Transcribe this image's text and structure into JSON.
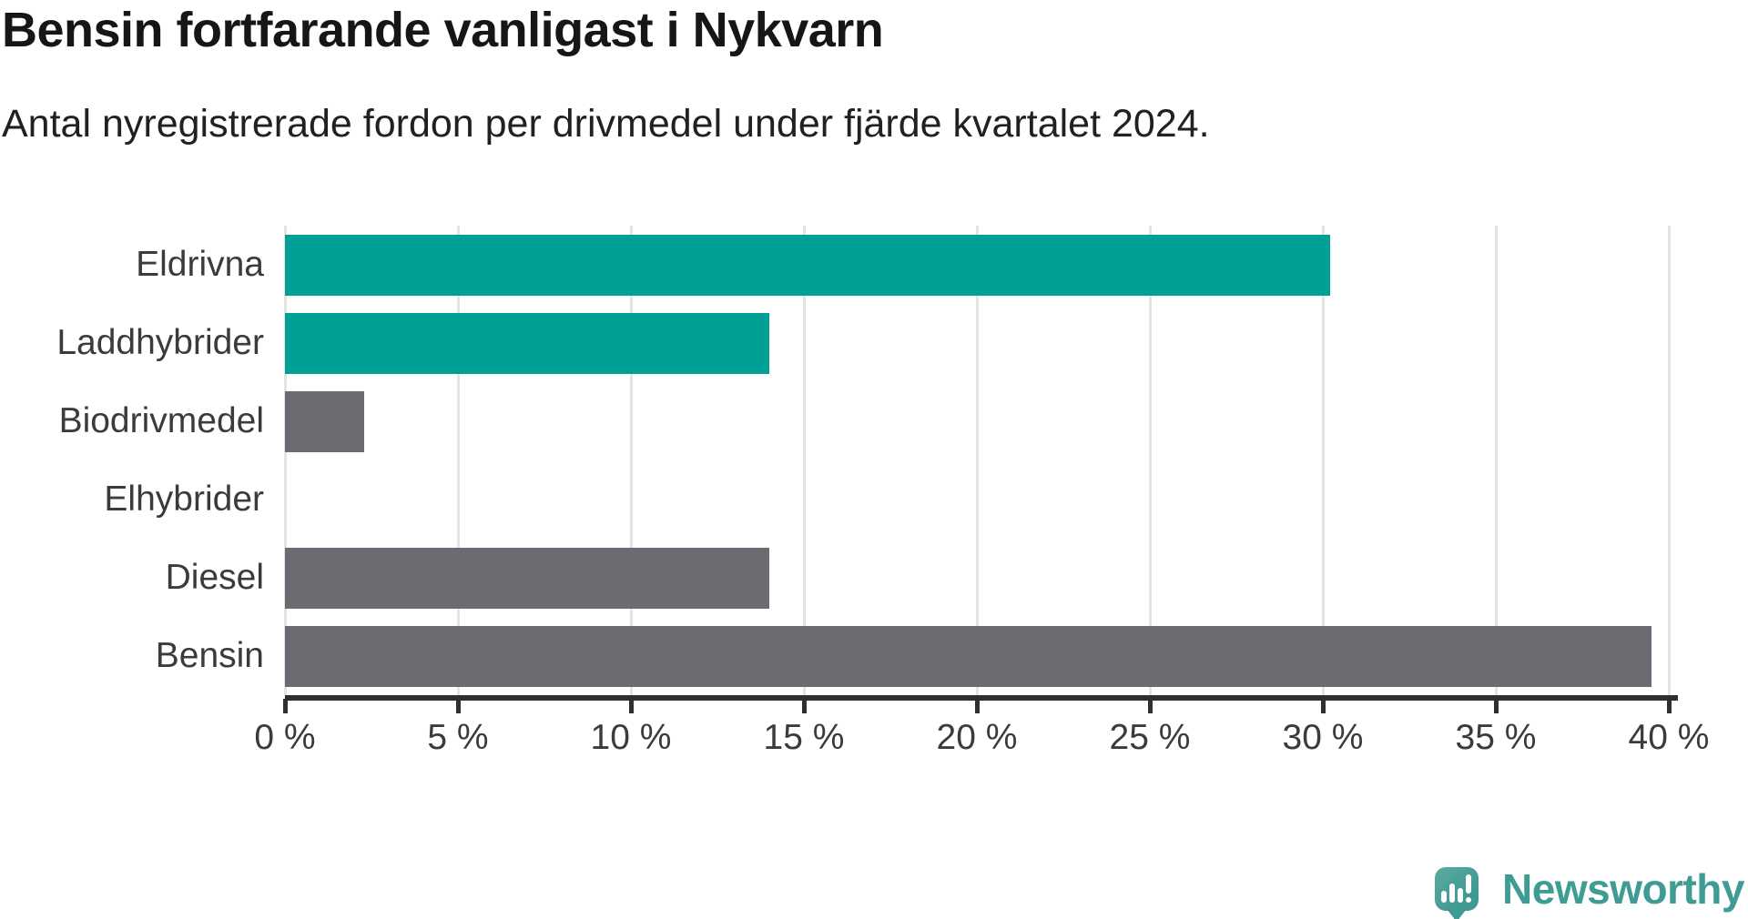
{
  "header": {
    "title": "Bensin fortfarande vanligast i Nykvarn",
    "subtitle": "Antal nyregistrerade fordon per drivmedel under fjärde kvartalet 2024."
  },
  "chart_data": {
    "type": "bar",
    "orientation": "horizontal",
    "title": "Bensin fortfarande vanligast i Nykvarn",
    "subtitle": "Antal nyregistrerade fordon per drivmedel under fjärde kvartalet 2024.",
    "categories": [
      "Eldrivna",
      "Laddhybrider",
      "Biodrivmedel",
      "Elhybrider",
      "Diesel",
      "Bensin"
    ],
    "values": [
      30.2,
      14.0,
      2.3,
      0.0,
      14.0,
      39.5
    ],
    "unit": "%",
    "bar_colors": [
      "#00a096",
      "#00a096",
      "#6e6a72",
      "#6e6a72",
      "#6e6a72",
      "#6e6a72"
    ],
    "xlim": [
      0,
      40
    ],
    "x_ticks": [
      0,
      5,
      10,
      15,
      20,
      25,
      30,
      35,
      40
    ],
    "x_tick_labels": [
      "0 %",
      "5 %",
      "10 %",
      "15 %",
      "20 %",
      "25 %",
      "30 %",
      "35 %",
      "40 %"
    ],
    "grid": "vertical-only",
    "legend": "none"
  },
  "colors": {
    "electric_accent": "#00a096",
    "fossil_gray": "#6e6a72",
    "axis": "#2f2f2f",
    "gridline": "#e4e4e4",
    "text": "#3b3b3b"
  },
  "branding": {
    "logo_text": "Newsworthy",
    "logo_text_color": "#3f9c94",
    "logo_bubble_color": "#3f9a92"
  }
}
